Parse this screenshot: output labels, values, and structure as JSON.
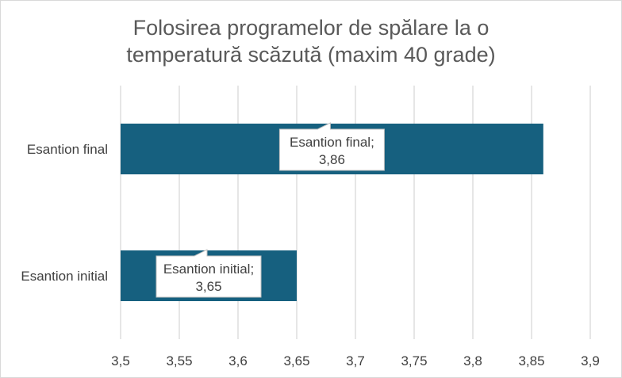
{
  "chart_data": {
    "type": "bar",
    "orientation": "horizontal",
    "title_lines": [
      "Folosirea programelor de spălare la o",
      "temperatură scăzută (maxim 40 grade)"
    ],
    "categories": [
      "Esantion final",
      "Esantion initial"
    ],
    "values": [
      3.86,
      3.65
    ],
    "xlim": [
      3.5,
      3.9
    ],
    "x_ticks": [
      "3,5",
      "3,55",
      "3,6",
      "3,65",
      "3,7",
      "3,75",
      "3,8",
      "3,85",
      "3,9"
    ],
    "data_labels": [
      {
        "category": "Esantion final;",
        "value": "3,86"
      },
      {
        "category": "Esantion initial;",
        "value": "3,65"
      }
    ],
    "grid": "vertical",
    "bar_color": "#16607f"
  }
}
